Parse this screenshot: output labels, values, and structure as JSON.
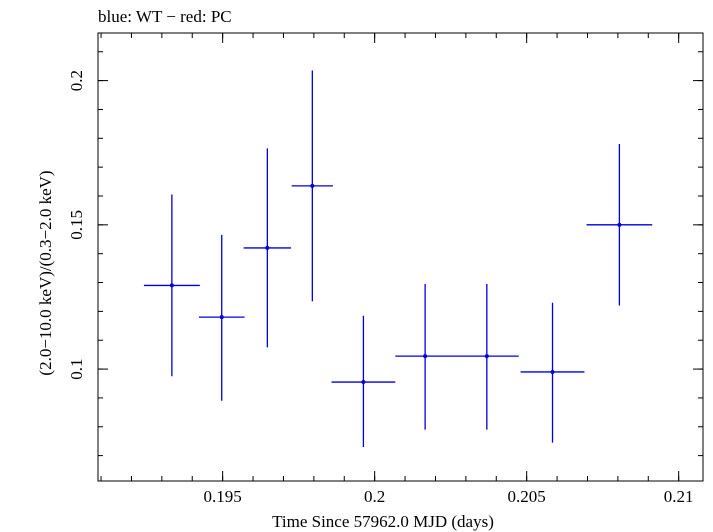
{
  "chart_data": {
    "type": "scatter",
    "title": "blue: WT − red: PC",
    "xlabel": "Time Since 57962.0 MJD (days)",
    "ylabel": "(2.0−10.0 keV)/(0.3−2.0 keV)",
    "xlim": [
      0.1909,
      0.2108
    ],
    "ylim": [
      0.0612,
      0.2165
    ],
    "x_major_ticks": [
      0.195,
      0.2,
      0.205,
      0.21
    ],
    "x_tick_labels": [
      "0.195",
      "0.2",
      "0.205",
      "0.21"
    ],
    "y_major_ticks": [
      0.1,
      0.15,
      0.2
    ],
    "y_tick_labels": [
      "0.1",
      "0.15",
      "0.2"
    ],
    "grid": false,
    "series": [
      {
        "color": "#0000dd",
        "points": [
          {
            "x": 0.19333,
            "y": 0.129,
            "xerr": 0.00092,
            "yerr_lo": 0.0315,
            "yerr_hi": 0.0315
          },
          {
            "x": 0.19497,
            "y": 0.118,
            "xerr": 0.00075,
            "yerr_lo": 0.029,
            "yerr_hi": 0.0285
          },
          {
            "x": 0.19647,
            "y": 0.142,
            "xerr": 0.00078,
            "yerr_lo": 0.0345,
            "yerr_hi": 0.0345
          },
          {
            "x": 0.19795,
            "y": 0.1635,
            "xerr": 0.00068,
            "yerr_lo": 0.04,
            "yerr_hi": 0.04
          },
          {
            "x": 0.19963,
            "y": 0.0955,
            "xerr": 0.00105,
            "yerr_lo": 0.0225,
            "yerr_hi": 0.023
          },
          {
            "x": 0.20166,
            "y": 0.1045,
            "xerr": 0.00098,
            "yerr_lo": 0.0255,
            "yerr_hi": 0.025
          },
          {
            "x": 0.20369,
            "y": 0.1045,
            "xerr": 0.00105,
            "yerr_lo": 0.0255,
            "yerr_hi": 0.025
          },
          {
            "x": 0.20585,
            "y": 0.099,
            "xerr": 0.00105,
            "yerr_lo": 0.0245,
            "yerr_hi": 0.024
          },
          {
            "x": 0.20805,
            "y": 0.15,
            "xerr": 0.00108,
            "yerr_lo": 0.028,
            "yerr_hi": 0.028
          }
        ]
      }
    ]
  }
}
